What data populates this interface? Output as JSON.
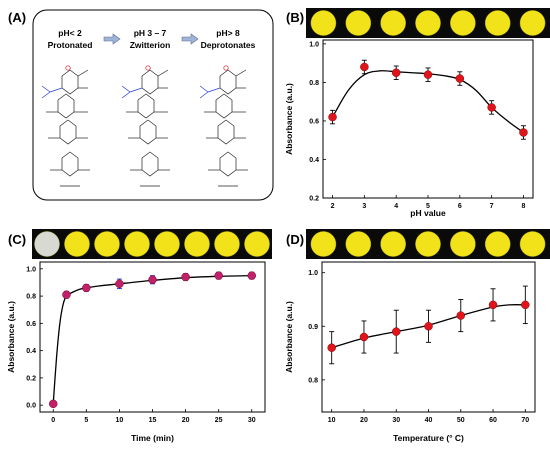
{
  "panel_a": {
    "label": "(A)",
    "states": [
      {
        "ph": "pH< 2",
        "name": "Protonated"
      },
      {
        "ph": "pH 3 – 7",
        "name": "Zwitterion"
      },
      {
        "ph": "pH> 8",
        "name": "Deprotonates"
      }
    ]
  },
  "colors": {
    "marker": "#e0141b",
    "marker_c": "#c0206e",
    "swatch": "#f2e21a",
    "strip": "#0a0a0a",
    "error_c": "#1a2fd0"
  },
  "chart_data": [
    {
      "id": "B",
      "label": "(B)",
      "type": "scatter",
      "xlabel": "pH value",
      "ylabel": "Absorbance (a.u.)",
      "xlim": [
        1.7,
        8.3
      ],
      "ylim": [
        0.2,
        1.02
      ],
      "xticks": [
        2,
        3,
        4,
        5,
        6,
        7,
        8
      ],
      "yticks": [
        0.2,
        0.4,
        0.6,
        0.8,
        1.0
      ],
      "x": [
        2,
        3,
        4,
        5,
        6,
        7,
        8
      ],
      "y": [
        0.62,
        0.88,
        0.85,
        0.84,
        0.82,
        0.67,
        0.54
      ],
      "err": [
        0.035,
        0.035,
        0.035,
        0.035,
        0.035,
        0.035,
        0.035
      ],
      "curve_x": [
        2,
        2.5,
        3,
        3.5,
        4,
        4.5,
        5,
        5.5,
        6,
        6.5,
        7,
        7.5,
        8
      ],
      "curve_y": [
        0.62,
        0.76,
        0.84,
        0.86,
        0.855,
        0.85,
        0.845,
        0.835,
        0.815,
        0.76,
        0.67,
        0.6,
        0.54
      ],
      "swatches": 7,
      "grey_first": false
    },
    {
      "id": "C",
      "label": "(C)",
      "type": "scatter",
      "xlabel": "Time (min)",
      "ylabel": "Absorbance (a.u.)",
      "xlim": [
        -2,
        32
      ],
      "ylim": [
        -0.05,
        1.05
      ],
      "xticks": [
        0,
        5,
        10,
        15,
        20,
        25,
        30
      ],
      "yticks": [
        0.0,
        0.2,
        0.4,
        0.6,
        0.8,
        1.0
      ],
      "x": [
        0,
        2,
        5,
        10,
        15,
        20,
        25,
        30
      ],
      "y": [
        0.01,
        0.81,
        0.86,
        0.89,
        0.92,
        0.94,
        0.95,
        0.95
      ],
      "err": [
        0.01,
        0.025,
        0.025,
        0.035,
        0.03,
        0.025,
        0.025,
        0.025
      ],
      "curve_x": [
        0,
        0.5,
        1,
        1.5,
        2,
        3,
        4,
        5,
        7,
        10,
        15,
        20,
        25,
        30
      ],
      "curve_y": [
        0.01,
        0.35,
        0.6,
        0.74,
        0.8,
        0.83,
        0.85,
        0.86,
        0.875,
        0.89,
        0.915,
        0.935,
        0.945,
        0.95
      ],
      "swatches": 8,
      "grey_first": true
    },
    {
      "id": "D",
      "label": "(D)",
      "type": "scatter",
      "xlabel": "Temperature (° C)",
      "ylabel": "Absorbance (a.u.)",
      "xlim": [
        7,
        73
      ],
      "ylim": [
        0.74,
        1.02
      ],
      "xticks": [
        10,
        20,
        30,
        40,
        50,
        60,
        70
      ],
      "yticks": [
        0.8,
        0.9,
        1.0
      ],
      "x": [
        10,
        20,
        30,
        40,
        50,
        60,
        70
      ],
      "y": [
        0.86,
        0.88,
        0.89,
        0.9,
        0.92,
        0.94,
        0.94
      ],
      "err": [
        0.03,
        0.03,
        0.04,
        0.03,
        0.03,
        0.03,
        0.035
      ],
      "curve_x": [
        10,
        20,
        30,
        40,
        50,
        60,
        65,
        70
      ],
      "curve_y": [
        0.86,
        0.878,
        0.89,
        0.902,
        0.92,
        0.936,
        0.94,
        0.94
      ],
      "swatches": 7,
      "grey_first": false
    }
  ]
}
